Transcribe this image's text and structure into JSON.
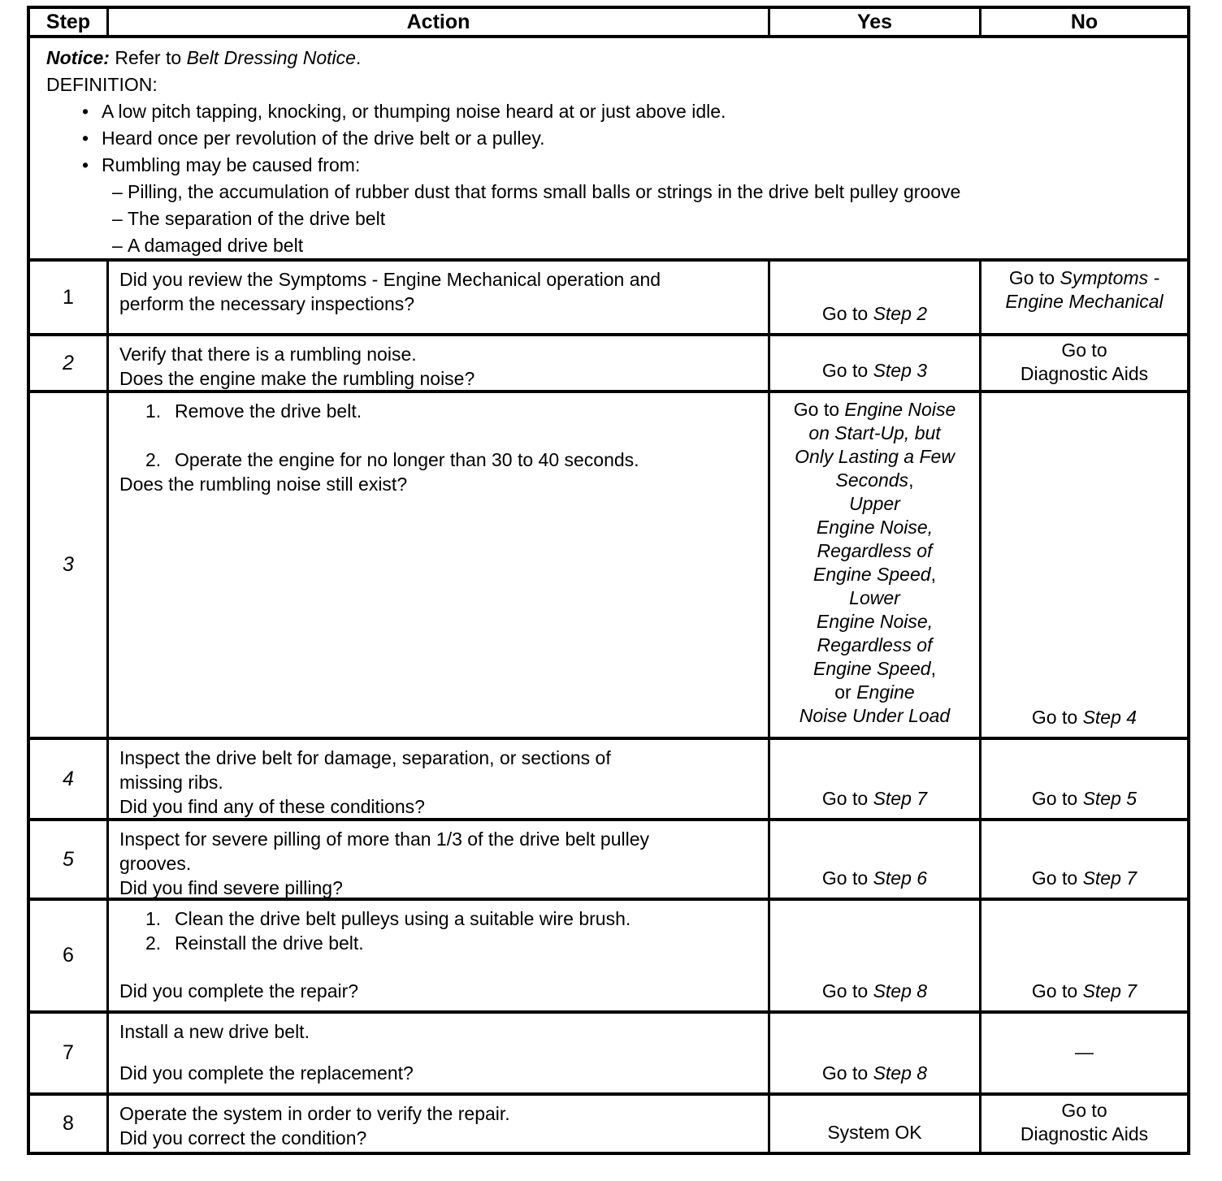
{
  "icons": {
    "bullet_glyph": "•",
    "dash_glyph": "–"
  },
  "table": {
    "headers": {
      "step": "Step",
      "action": "Action",
      "yes": "Yes",
      "no": "No"
    },
    "notice": {
      "notice_line": "***Notice:*** Refer to *Belt Dressing Notice*.",
      "definition_label": "DEFINITION:",
      "bullets": [
        "A low pitch tapping, knocking, or thumping noise heard at or just above idle.",
        "Heard once per revolution of the drive belt or a pulley.",
        "Rumbling may be caused from:"
      ],
      "dash_items": [
        "Pilling, the accumulation of rubber dust that forms small balls or strings in the drive belt pulley groove",
        "The separation of the drive belt",
        "A damaged drive belt"
      ]
    },
    "rows": [
      {
        "step": "1",
        "step_italic": false,
        "action": {
          "top": [
            {
              "kind": "para",
              "text": "Did you review the Symptoms - Engine Mechanical operation and\nperform the necessary inspections?"
            }
          ],
          "bottom": []
        },
        "yes": {
          "text": "Go to *Step 2*",
          "valign": "bottom"
        },
        "no": {
          "text": "Go to *Symptoms -*\n*Engine Mechanical*",
          "valign": "top"
        }
      },
      {
        "step": "2",
        "step_italic": true,
        "action": {
          "top": [
            {
              "kind": "para",
              "text": "Verify that there is a rumbling noise."
            }
          ],
          "bottom": [
            {
              "kind": "para",
              "text": "Does the engine make the rumbling noise?"
            }
          ]
        },
        "yes": {
          "text": "Go to *Step 3*",
          "valign": "bottom"
        },
        "no": {
          "text": "Go to\nDiagnostic Aids",
          "valign": "center"
        }
      },
      {
        "step": "3",
        "step_italic": true,
        "action": {
          "top": [
            {
              "kind": "item",
              "num": "1.",
              "text": "Remove the drive belt."
            },
            {
              "kind": "gap"
            },
            {
              "kind": "item",
              "num": "2.",
              "text": "Operate the engine for no longer than 30 to 40 seconds."
            },
            {
              "kind": "para",
              "text": "Does the rumbling noise still exist?"
            }
          ],
          "bottom": []
        },
        "yes": {
          "text": "Go to *Engine Noise*\n*on Start-Up, but*\n*Only Lasting a Few*\n*Seconds*,\n*Upper*\n*Engine Noise,*\n*Regardless of*\n*Engine Speed*,\n*Lower*\n*Engine Noise,*\n*Regardless of*\n*Engine Speed*,\nor *Engine*\n*Noise Under Load*",
          "valign": "top"
        },
        "no": {
          "text": "Go to *Step 4*",
          "valign": "bottom"
        }
      },
      {
        "step": "4",
        "step_italic": true,
        "action": {
          "top": [
            {
              "kind": "para",
              "text": "Inspect the drive belt for damage, separation, or sections of\nmissing ribs."
            }
          ],
          "bottom": [
            {
              "kind": "para",
              "text": "Did you find any of these conditions?"
            }
          ]
        },
        "yes": {
          "text": "Go to *Step 7*",
          "valign": "bottom"
        },
        "no": {
          "text": "Go to *Step 5*",
          "valign": "bottom"
        }
      },
      {
        "step": "5",
        "step_italic": true,
        "action": {
          "top": [
            {
              "kind": "para",
              "text": "Inspect for severe pilling of more than 1/3 of the drive belt pulley\ngrooves."
            }
          ],
          "bottom": [
            {
              "kind": "para",
              "text": "Did you find severe pilling?"
            }
          ]
        },
        "yes": {
          "text": "Go to *Step 6*",
          "valign": "bottom"
        },
        "no": {
          "text": "Go to *Step 7*",
          "valign": "bottom"
        }
      },
      {
        "step": "6",
        "step_italic": false,
        "action": {
          "top": [
            {
              "kind": "item",
              "num": "1.",
              "text": "Clean the drive belt pulleys using a suitable wire brush."
            },
            {
              "kind": "item",
              "num": "2.",
              "text": "Reinstall the drive belt."
            }
          ],
          "bottom": [
            {
              "kind": "para",
              "text": "Did you complete the repair?"
            }
          ]
        },
        "yes": {
          "text": "Go to *Step 8*",
          "valign": "bottom"
        },
        "no": {
          "text": "Go to *Step 7*",
          "valign": "bottom"
        }
      },
      {
        "step": "7",
        "step_italic": false,
        "action": {
          "top": [
            {
              "kind": "para",
              "text": "Install a new drive belt."
            }
          ],
          "bottom": [
            {
              "kind": "para",
              "text": "Did you complete the replacement?"
            }
          ]
        },
        "yes": {
          "text": "Go to *Step 8*",
          "valign": "bottom"
        },
        "no": {
          "text": "—",
          "valign": "center"
        }
      },
      {
        "step": "8",
        "step_italic": false,
        "action": {
          "top": [
            {
              "kind": "para",
              "text": "Operate the system in order to verify the repair."
            }
          ],
          "bottom": [
            {
              "kind": "para",
              "text": "Did you correct the condition?"
            }
          ]
        },
        "yes": {
          "text": "System OK",
          "valign": "bottom"
        },
        "no": {
          "text": "Go to\nDiagnostic Aids",
          "valign": "center"
        }
      }
    ]
  }
}
